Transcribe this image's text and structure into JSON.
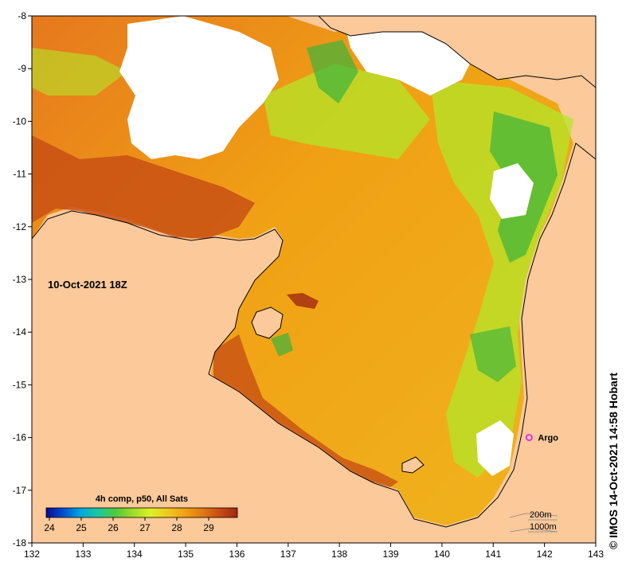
{
  "map": {
    "date_label": "10-Oct-2021 18Z",
    "credit": "© IMOS 14-Oct-2021 14:58 Hobart",
    "x_ticks": [
      "132",
      "133",
      "134",
      "135",
      "136",
      "137",
      "138",
      "139",
      "140",
      "141",
      "142",
      "143"
    ],
    "y_ticks": [
      "-8",
      "-9",
      "-10",
      "-11",
      "-12",
      "-13",
      "-14",
      "-15",
      "-16",
      "-17",
      "-18"
    ],
    "lon_range": [
      132,
      143
    ],
    "lat_range": [
      -18,
      -8
    ],
    "marker": {
      "label": "Argo",
      "lon": 141.7,
      "lat": -16.0,
      "color": "#e632e6"
    },
    "legend": {
      "title": "4h comp, p50, All Sats",
      "ticks": [
        "24",
        "25",
        "26",
        "27",
        "28",
        "29"
      ],
      "range": [
        23.9,
        29.9
      ],
      "stops": [
        "#0a0a8c",
        "#0050d2",
        "#00aadc",
        "#1ec8a0",
        "#50c83c",
        "#a0dc28",
        "#dcf028",
        "#f0c81e",
        "#f0a014",
        "#e07814",
        "#c84a14",
        "#a0280f"
      ]
    },
    "contours": [
      "200m",
      "1000m"
    ],
    "colors": {
      "land": "#fbc99a",
      "nodata": "#ffffff",
      "hot": "#c85014",
      "warm": "#f0a014",
      "cool": "#b4e628",
      "cold": "#3cb43c"
    }
  }
}
